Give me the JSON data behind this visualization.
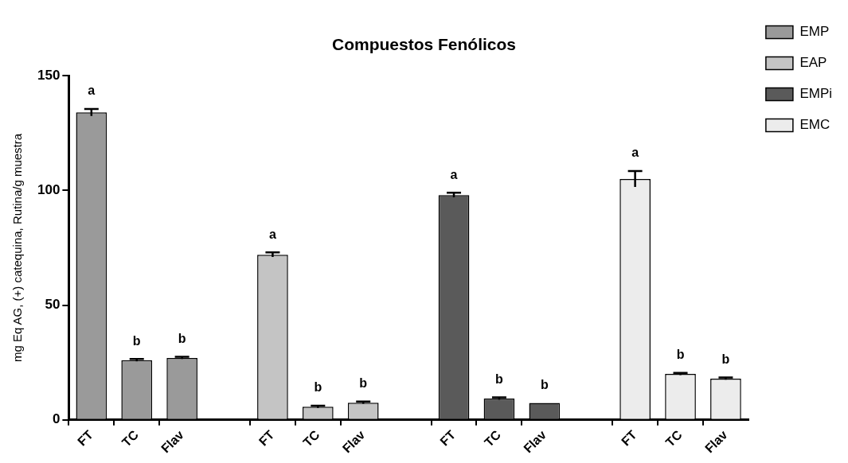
{
  "chart_data": {
    "type": "bar",
    "title": "Compuestos Fenólicos",
    "ylabel": "mg Eq AG, (+) catequina, Rutina/g muestra",
    "categories": [
      "FT",
      "TC",
      "Flav",
      null,
      "FT",
      "TC",
      "Flav",
      null,
      "FT",
      "TC",
      "Flav",
      null,
      "FT",
      "TC",
      "Flav"
    ],
    "ylim": [
      0,
      150
    ],
    "yticks": [
      0,
      50,
      100,
      150
    ],
    "grid": false,
    "legend": "top right",
    "series": [
      {
        "name": "EMP",
        "color": "#9a9a9a",
        "values": [
          134,
          26,
          27,
          null,
          null,
          null,
          null,
          null,
          null,
          null,
          null,
          null,
          null,
          null,
          null
        ],
        "errors": [
          1.5,
          0.5,
          0.5,
          null,
          null,
          null,
          null,
          null,
          null,
          null,
          null,
          null,
          null,
          null,
          null
        ],
        "value_labels": [
          "a",
          "b",
          "b",
          null,
          null,
          null,
          null,
          null,
          null,
          null,
          null,
          null,
          null,
          null,
          null
        ]
      },
      {
        "name": "EAP",
        "color": "#c4c4c4",
        "values": [
          null,
          null,
          null,
          null,
          72,
          5.7,
          7.5,
          null,
          null,
          null,
          null,
          null,
          null,
          null,
          null
        ],
        "errors": [
          null,
          null,
          null,
          null,
          1,
          0.5,
          0.5,
          null,
          null,
          null,
          null,
          null,
          null,
          null,
          null
        ],
        "value_labels": [
          null,
          null,
          null,
          null,
          "a",
          "b",
          "b",
          null,
          null,
          null,
          null,
          null,
          null,
          null,
          null
        ]
      },
      {
        "name": "EMPi",
        "color": "#5a5a5a",
        "values": [
          null,
          null,
          null,
          null,
          null,
          null,
          null,
          null,
          98,
          9.3,
          7.4,
          null,
          null,
          null,
          null
        ],
        "errors": [
          null,
          null,
          null,
          null,
          null,
          null,
          null,
          null,
          1,
          0.5,
          null,
          null,
          null,
          null,
          null
        ],
        "value_labels": [
          null,
          null,
          null,
          null,
          null,
          null,
          null,
          null,
          "a",
          "b",
          "b",
          null,
          null,
          null,
          null
        ]
      },
      {
        "name": "EMC",
        "color": "#ececec",
        "values": [
          null,
          null,
          null,
          null,
          null,
          null,
          null,
          null,
          null,
          null,
          null,
          null,
          105,
          20,
          18
        ],
        "errors": [
          null,
          null,
          null,
          null,
          null,
          null,
          null,
          null,
          null,
          null,
          null,
          null,
          3.5,
          0.5,
          0.5
        ],
        "value_labels": [
          null,
          null,
          null,
          null,
          null,
          null,
          null,
          null,
          null,
          null,
          null,
          null,
          "a",
          "b",
          "b"
        ]
      }
    ]
  }
}
